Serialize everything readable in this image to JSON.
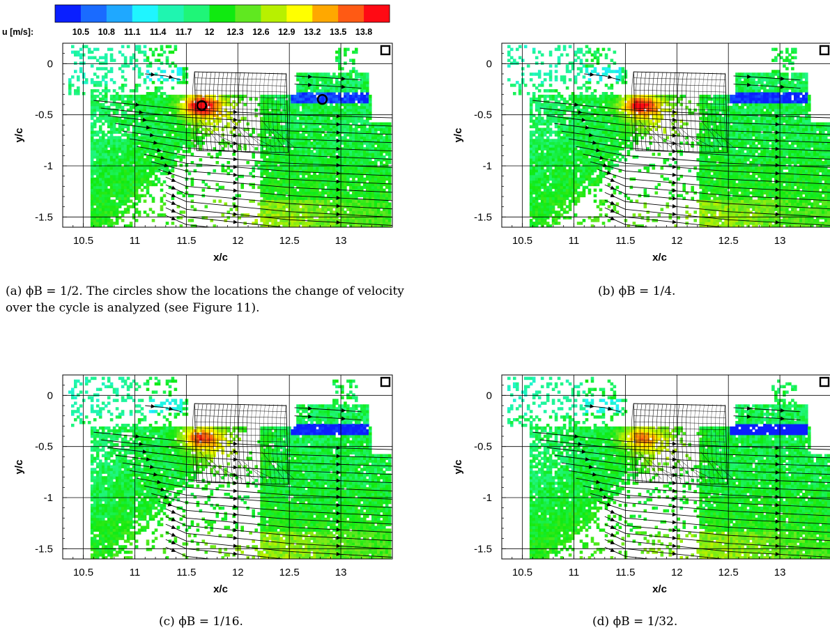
{
  "colorbar": {
    "label": "u [m/s]:",
    "ticks": [
      "10.5",
      "10.8",
      "11.1",
      "11.4",
      "11.7",
      "12",
      "12.3",
      "12.6",
      "12.9",
      "13.2",
      "13.5",
      "13.8"
    ],
    "colors": [
      "#0a1fff",
      "#1a6bff",
      "#1fa8ff",
      "#1ff5ff",
      "#1ff5b0",
      "#1ff578",
      "#10ea10",
      "#60e820",
      "#b8f000",
      "#ffff00",
      "#ffa800",
      "#ff5a14",
      "#ff0a14"
    ]
  },
  "captions": {
    "a_tag": "(a)",
    "a_text": "ϕB = 1/2.  The circles show the locations the change of velocity over the cycle is analyzed (see Figure 11).",
    "b_tag": "(b)",
    "b_text": "ϕB = 1/4.",
    "c_tag": "(c)",
    "c_text": "ϕB = 1/16.",
    "d_tag": "(d)",
    "d_text": "ϕB = 1/32."
  },
  "chart_data": [
    {
      "type": "heatmap",
      "panel": "a",
      "xlabel": "x/c",
      "ylabel": "y/c",
      "xlim": [
        10.3,
        13.5
      ],
      "ylim": [
        -1.6,
        0.2
      ],
      "xticks": [
        "10.5",
        "11",
        "11.5",
        "12",
        "12.5",
        "13"
      ],
      "yticks": [
        "0",
        "-0.5",
        "-1",
        "-1.5"
      ],
      "marker_circles": [
        [
          11.65,
          -0.41
        ],
        [
          12.82,
          -0.35
        ]
      ]
    },
    {
      "type": "heatmap",
      "panel": "b",
      "xlabel": "x/c",
      "ylabel": "y/c",
      "xlim": [
        10.3,
        13.5
      ],
      "ylim": [
        -1.6,
        0.2
      ],
      "xticks": [
        "10.5",
        "11",
        "11.5",
        "12",
        "12.5",
        "13"
      ],
      "yticks": [
        "0",
        "-0.5",
        "-1",
        "-1.5"
      ]
    },
    {
      "type": "heatmap",
      "panel": "c",
      "xlabel": "x/c",
      "ylabel": "y/c",
      "xlim": [
        10.3,
        13.5
      ],
      "ylim": [
        -1.6,
        0.2
      ],
      "xticks": [
        "10.5",
        "11",
        "11.5",
        "12",
        "12.5",
        "13"
      ],
      "yticks": [
        "0",
        "-0.5",
        "-1",
        "-1.5"
      ]
    },
    {
      "type": "heatmap",
      "panel": "d",
      "xlabel": "x/c",
      "ylabel": "y/c",
      "xlim": [
        10.3,
        13.5
      ],
      "ylim": [
        -1.6,
        0.2
      ],
      "xticks": [
        "10.5",
        "11",
        "11.5",
        "12",
        "12.5",
        "13"
      ],
      "yticks": [
        "0",
        "-0.5",
        "-1",
        "-1.5"
      ]
    }
  ]
}
